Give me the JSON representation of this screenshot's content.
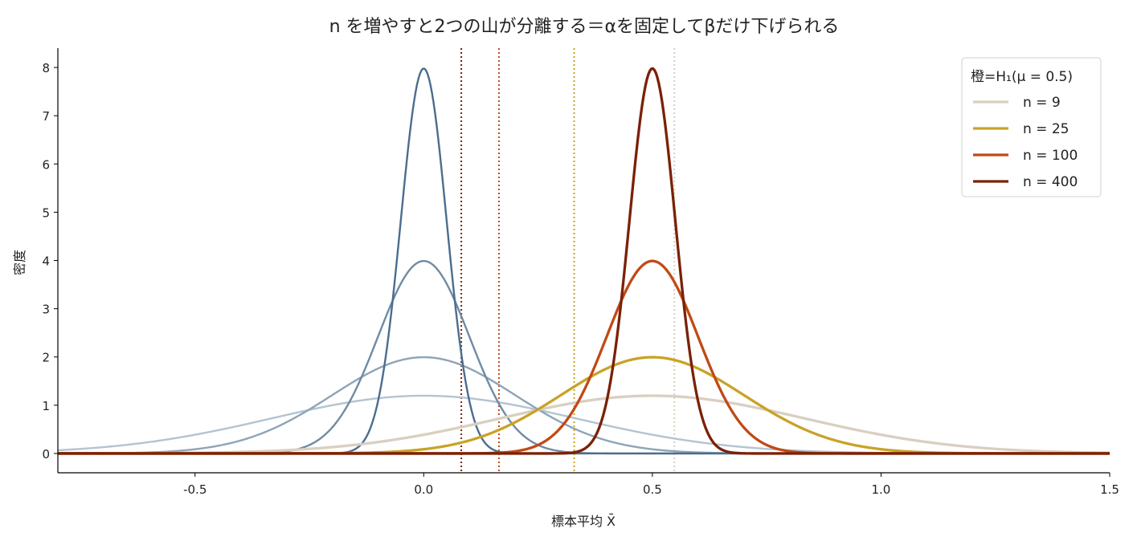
{
  "chart_data": {
    "type": "line",
    "title": "n を増やすと2つの山が分離する＝αを固定してβだけ下げられる",
    "xlabel": "標本平均 X̄",
    "ylabel": "密度",
    "xlim": [
      -0.8,
      1.5
    ],
    "ylim": [
      -0.4,
      8.4
    ],
    "x_ticks": [
      -0.5,
      0.0,
      0.5,
      1.0,
      1.5
    ],
    "x_tick_labels": [
      "-0.5",
      "0.0",
      "0.5",
      "1.0",
      "1.5"
    ],
    "y_ticks": [
      0,
      1,
      2,
      3,
      4,
      5,
      6,
      7,
      8
    ],
    "y_tick_labels": [
      "0",
      "1",
      "2",
      "3",
      "4",
      "5",
      "6",
      "7",
      "8"
    ],
    "grid": false,
    "sigma": 1.0,
    "h0_mean": 0.0,
    "h1_mean": 0.5,
    "legend": {
      "title": "橙=H₁(μ = 0.5)",
      "placement": "top-right"
    },
    "series": [
      {
        "name": "n = 9",
        "n": 9,
        "color": "#d9cfc1",
        "h0_color": "#b3c4d1",
        "critical_value": 0.548
      },
      {
        "name": "n = 25",
        "n": 25,
        "color": "#c9a227",
        "h0_color": "#8ea4b7",
        "critical_value": 0.329
      },
      {
        "name": "n = 100",
        "n": 100,
        "color": "#c04a15",
        "h0_color": "#6f8ba3",
        "critical_value": 0.1645
      },
      {
        "name": "n = 400",
        "n": 400,
        "color": "#7a2106",
        "h0_color": "#4b6d8f",
        "critical_value": 0.0822
      }
    ]
  }
}
